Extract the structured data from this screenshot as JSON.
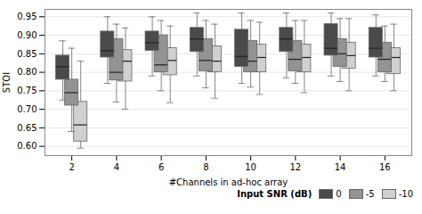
{
  "chart_data": {
    "type": "box",
    "xlabel": "#Channels in ad-hoc array",
    "ylabel": "STOI",
    "categories": [
      2,
      4,
      6,
      8,
      10,
      12,
      14,
      16
    ],
    "ylim": [
      0.575,
      0.97
    ],
    "yticks": [
      {
        "value": 0.6,
        "label": "0.60"
      },
      0.65,
      {
        "value": 0.7,
        "label": "0.70"
      },
      0.75,
      {
        "value": 0.8,
        "label": "0.80"
      },
      0.85,
      {
        "value": 0.9,
        "label": "0.90"
      },
      0.95
    ],
    "grid": true,
    "legend": "lower right",
    "legend_title": "Input SNR (dB)",
    "series": [
      {
        "name": "0",
        "color": "#4a4a4a",
        "values": [
          {
            "med": 0.815,
            "q1": 0.78,
            "q3": 0.845,
            "whislo": 0.725,
            "whishi": 0.885
          },
          {
            "med": 0.858,
            "q1": 0.84,
            "q3": 0.91,
            "whislo": 0.77,
            "whishi": 0.95
          },
          {
            "med": 0.88,
            "q1": 0.858,
            "q3": 0.91,
            "whislo": 0.79,
            "whishi": 0.95
          },
          {
            "med": 0.89,
            "q1": 0.855,
            "q3": 0.92,
            "whislo": 0.79,
            "whishi": 0.96
          },
          {
            "med": 0.843,
            "q1": 0.815,
            "q3": 0.915,
            "whislo": 0.77,
            "whishi": 0.96
          },
          {
            "med": 0.89,
            "q1": 0.855,
            "q3": 0.92,
            "whislo": 0.785,
            "whishi": 0.96
          },
          {
            "med": 0.865,
            "q1": 0.845,
            "q3": 0.93,
            "whislo": 0.79,
            "whishi": 0.96
          },
          {
            "med": 0.865,
            "q1": 0.84,
            "q3": 0.92,
            "whislo": 0.79,
            "whishi": 0.955
          }
        ]
      },
      {
        "name": "-5",
        "color": "#939393",
        "values": [
          {
            "med": 0.745,
            "q1": 0.71,
            "q3": 0.78,
            "whislo": 0.64,
            "whishi": 0.865
          },
          {
            "med": 0.8,
            "q1": 0.778,
            "q3": 0.89,
            "whislo": 0.72,
            "whishi": 0.93
          },
          {
            "med": 0.82,
            "q1": 0.8,
            "q3": 0.9,
            "whislo": 0.75,
            "whishi": 0.94
          },
          {
            "med": 0.832,
            "q1": 0.803,
            "q3": 0.89,
            "whislo": 0.758,
            "whishi": 0.94
          },
          {
            "med": 0.83,
            "q1": 0.8,
            "q3": 0.885,
            "whislo": 0.76,
            "whishi": 0.94
          },
          {
            "med": 0.835,
            "q1": 0.803,
            "q3": 0.885,
            "whislo": 0.77,
            "whishi": 0.94
          },
          {
            "med": 0.85,
            "q1": 0.815,
            "q3": 0.89,
            "whislo": 0.775,
            "whishi": 0.945
          },
          {
            "med": 0.835,
            "q1": 0.8,
            "q3": 0.88,
            "whislo": 0.775,
            "whishi": 0.925
          }
        ]
      },
      {
        "name": "-10",
        "color": "#d0d0d0",
        "values": [
          {
            "med": 0.658,
            "q1": 0.613,
            "q3": 0.72,
            "whislo": 0.595,
            "whishi": 0.83
          },
          {
            "med": 0.83,
            "q1": 0.775,
            "q3": 0.86,
            "whislo": 0.7,
            "whishi": 0.92
          },
          {
            "med": 0.832,
            "q1": 0.792,
            "q3": 0.865,
            "whislo": 0.718,
            "whishi": 0.925
          },
          {
            "med": 0.83,
            "q1": 0.8,
            "q3": 0.87,
            "whislo": 0.73,
            "whishi": 0.93
          },
          {
            "med": 0.84,
            "q1": 0.8,
            "q3": 0.875,
            "whislo": 0.74,
            "whishi": 0.935
          },
          {
            "med": 0.84,
            "q1": 0.8,
            "q3": 0.875,
            "whislo": 0.745,
            "whishi": 0.94
          },
          {
            "med": 0.845,
            "q1": 0.81,
            "q3": 0.88,
            "whislo": 0.75,
            "whishi": 0.945
          },
          {
            "med": 0.84,
            "q1": 0.795,
            "q3": 0.865,
            "whislo": 0.75,
            "whishi": 0.93
          }
        ]
      }
    ]
  }
}
